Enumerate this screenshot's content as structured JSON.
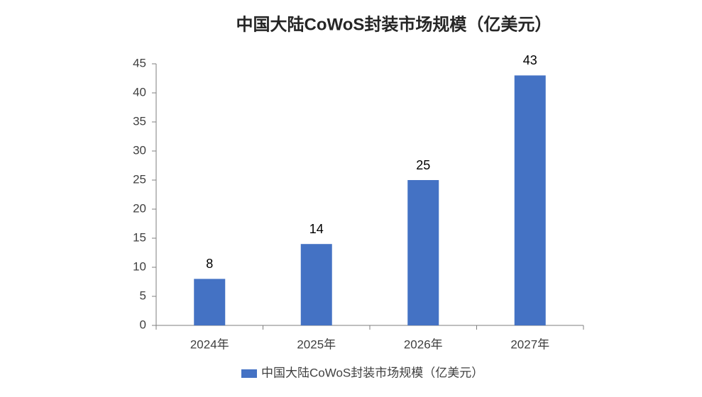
{
  "chart_data": {
    "type": "bar",
    "title": "中国大陆CoWoS封装市场规模（亿美元）",
    "categories": [
      "2024年",
      "2025年",
      "2026年",
      "2027年"
    ],
    "series": [
      {
        "name": "中国大陆CoWoS封装市场规模（亿美元）",
        "color": "#4472c4",
        "values": [
          8,
          14,
          25,
          43
        ]
      }
    ],
    "ylim": [
      0,
      45
    ],
    "yticks": [
      0,
      5,
      10,
      15,
      20,
      25,
      30,
      35,
      40,
      45
    ],
    "grid": false,
    "legend": "bottom"
  }
}
